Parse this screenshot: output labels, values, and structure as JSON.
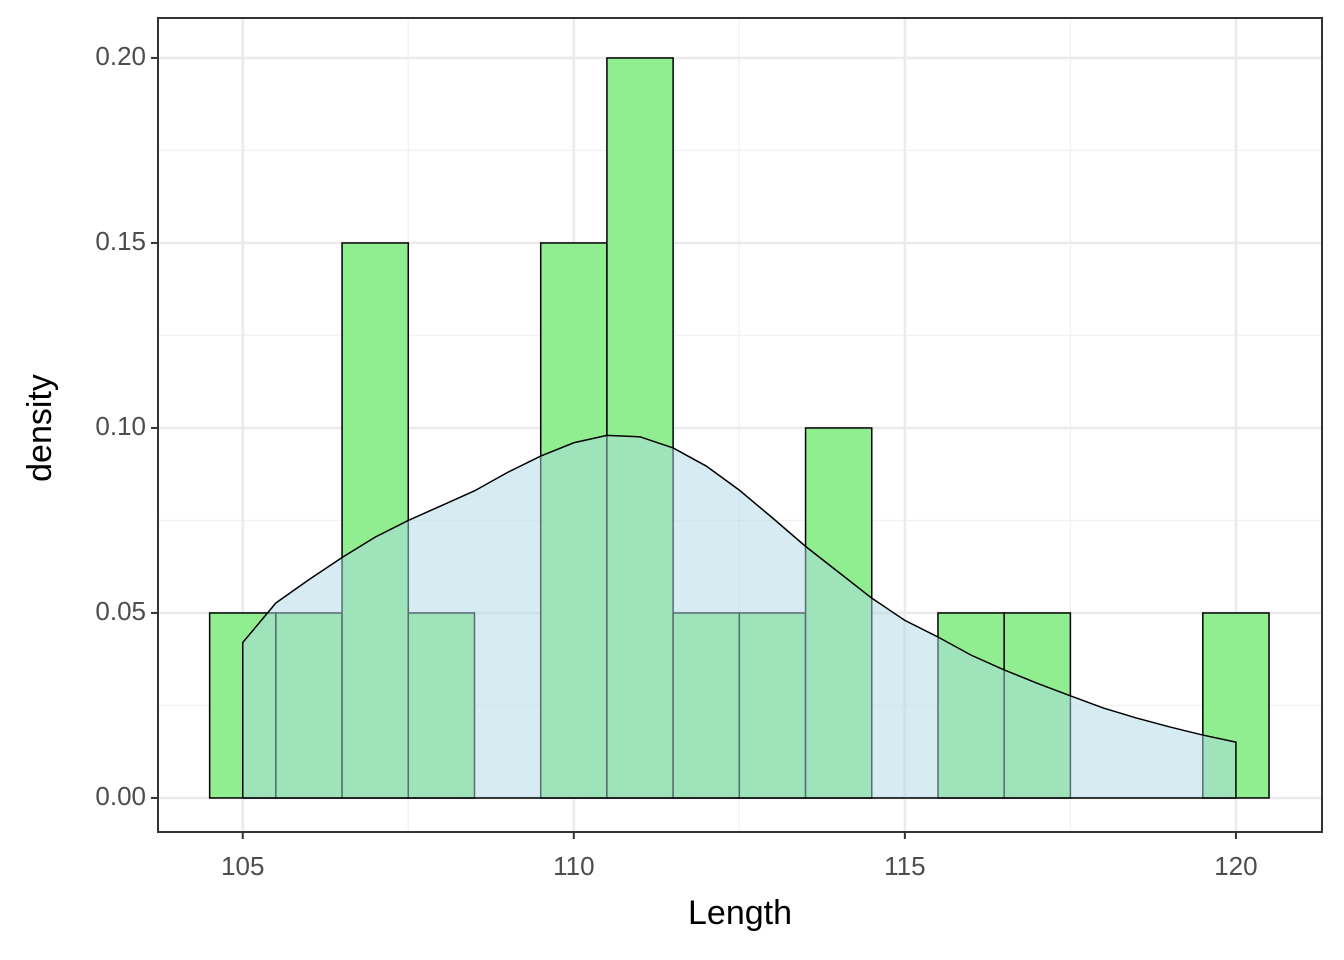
{
  "chart_data": {
    "type": "histogram",
    "x_label": "Length",
    "y_label": "density",
    "bins": [
      104.5,
      105.5,
      106.5,
      107.5,
      108.5,
      109.5,
      110.5,
      111.5,
      112.5,
      113.5,
      114.5,
      115.5,
      116.5,
      117.5,
      118.5,
      119.5,
      120.5
    ],
    "values": [
      0.05,
      0.05,
      0.15,
      0.05,
      0,
      0.15,
      0.2,
      0.05,
      0.05,
      0.1,
      0,
      0.05,
      0.05,
      0,
      0,
      0.05
    ],
    "color": "#90ee90",
    "density": {
      "x": [
        105,
        105.5,
        106,
        106.5,
        107,
        107.5,
        108,
        108.5,
        109,
        109.5,
        110,
        110.5,
        111,
        111.5,
        112,
        112.5,
        113,
        113.5,
        114,
        114.5,
        115,
        115.5,
        116,
        116.5,
        117,
        117.5,
        118,
        118.5,
        119,
        119.5,
        120
      ],
      "values": [
        0.042,
        0.0527,
        0.059,
        0.065,
        0.0705,
        0.075,
        0.079,
        0.083,
        0.088,
        0.0924,
        0.096,
        0.098,
        0.0976,
        0.0946,
        0.0897,
        0.0832,
        0.0757,
        0.068,
        0.061,
        0.054,
        0.048,
        0.0435,
        0.0386,
        0.0346,
        0.031,
        0.0276,
        0.0243,
        0.0216,
        0.0192,
        0.017,
        0.0151
      ],
      "color": "#add8e6"
    },
    "xlim": [
      103.72,
      121.3
    ],
    "ylim": [
      -0.0092,
      0.2108
    ],
    "xticks": [
      105,
      110,
      115,
      120
    ],
    "yticks": [
      {
        "value": 0,
        "label": "0.00"
      },
      {
        "value": 0.05,
        "label": "0.05"
      },
      {
        "value": 0.1,
        "label": "0.10"
      },
      {
        "value": 0.15,
        "label": "0.15"
      },
      {
        "value": 0.2,
        "label": "0.20"
      }
    ],
    "grid": true
  }
}
